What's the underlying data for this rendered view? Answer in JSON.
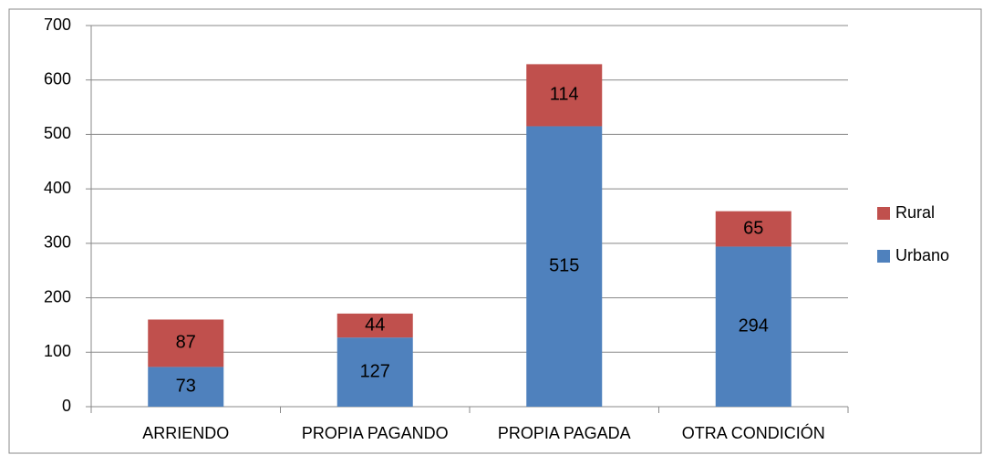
{
  "chart_data": {
    "type": "stacked_bar",
    "categories": [
      "ARRIENDO",
      "PROPIA PAGANDO",
      "PROPIA PAGADA",
      "OTRA CONDICIÓN"
    ],
    "series": [
      {
        "name": "Urbano",
        "color": "#4f81bd",
        "values": [
          73,
          127,
          515,
          294
        ]
      },
      {
        "name": "Rural",
        "color": "#c0504d",
        "values": [
          87,
          44,
          114,
          65
        ]
      }
    ],
    "ylim": [
      0,
      700
    ],
    "yticks": [
      0,
      100,
      200,
      300,
      400,
      500,
      600,
      700
    ],
    "grid": true,
    "legend": "right"
  }
}
